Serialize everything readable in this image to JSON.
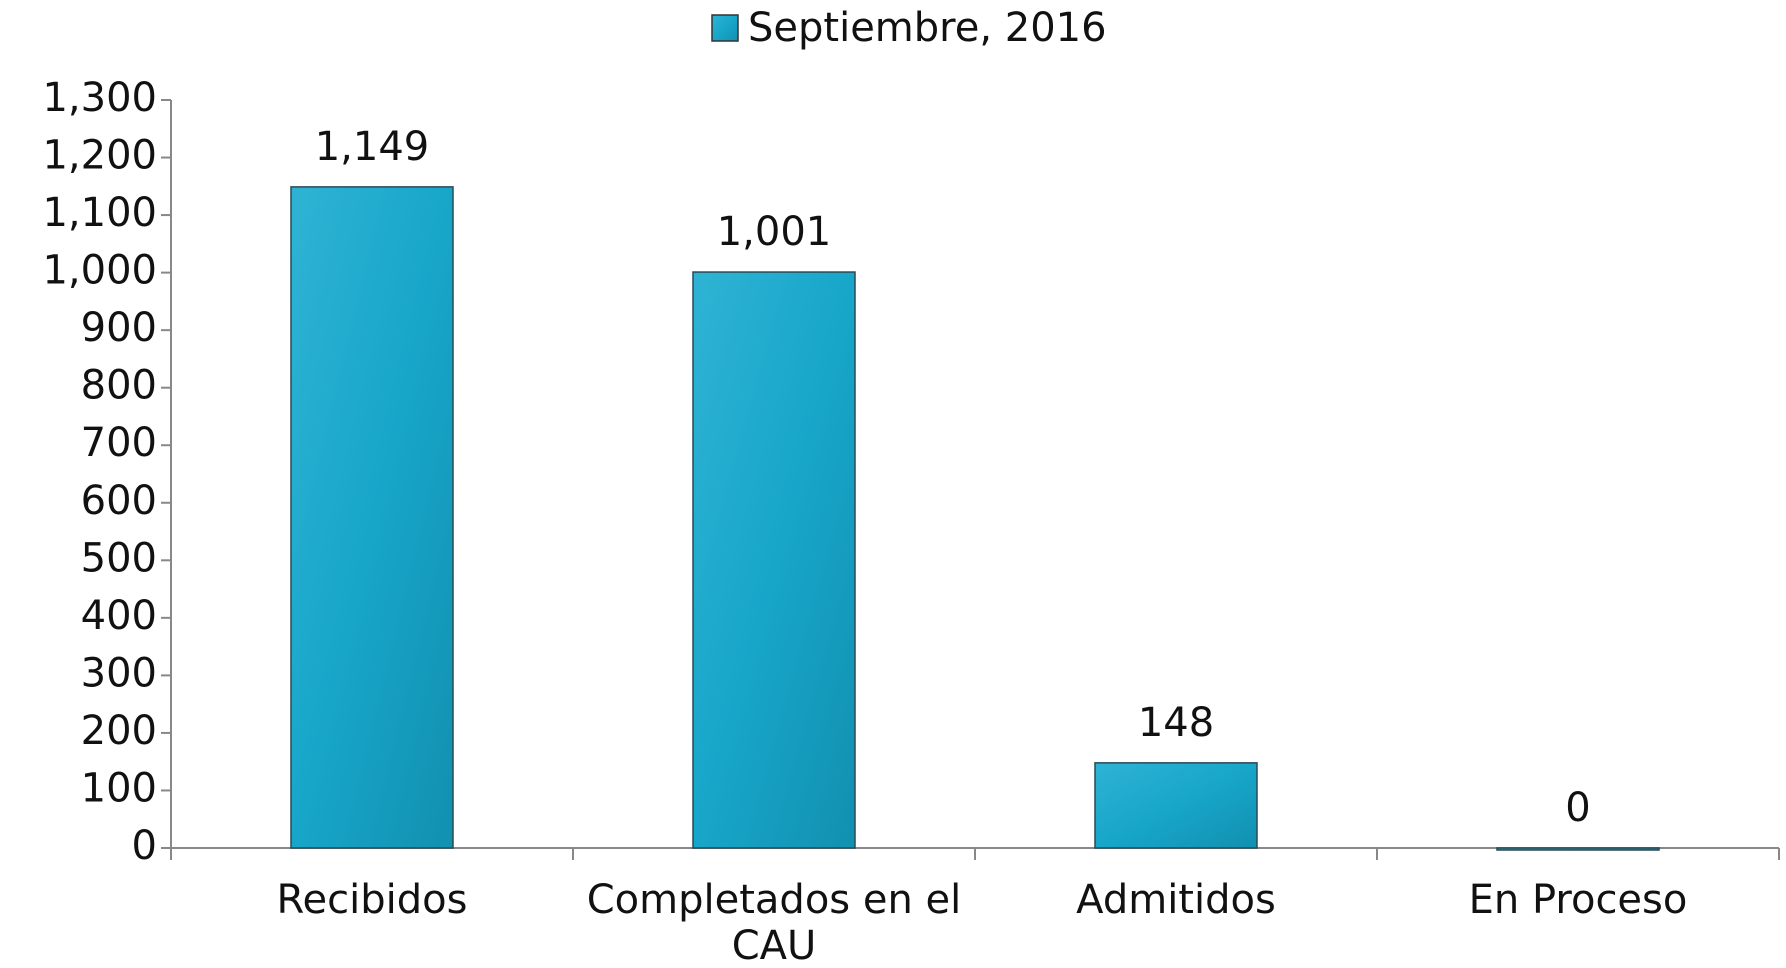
{
  "chart_data": {
    "type": "bar",
    "categories": [
      "Recibidos",
      "Completados en el CAU",
      "Admitidos",
      "En Proceso"
    ],
    "series": [
      {
        "name": "Septiembre, 2016",
        "color": "#17a6c9",
        "values": [
          1149,
          1001,
          148,
          0
        ],
        "value_labels": [
          "1,149",
          "1,001",
          "148",
          "0"
        ]
      }
    ],
    "ylim": [
      0,
      1300
    ],
    "yticks": [
      0,
      100,
      200,
      300,
      400,
      500,
      600,
      700,
      800,
      900,
      {
        "value": 1000,
        "label": "1,000"
      },
      {
        "value": 1100,
        "label": "1,100"
      },
      {
        "value": 1200,
        "label": "1,200"
      },
      {
        "value": 1300,
        "label": "1,300"
      }
    ],
    "grid": false,
    "legend": "top"
  }
}
